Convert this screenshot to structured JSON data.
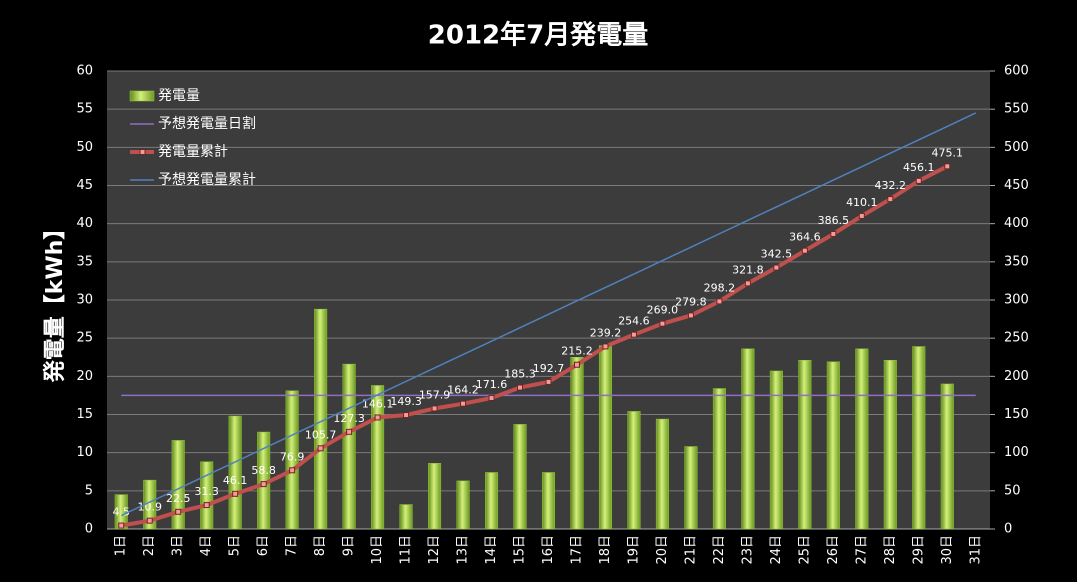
{
  "chart_data": {
    "type": "bar",
    "title": "2012年7月発電量",
    "y_label": "発電量【kWh】",
    "categories": [
      "1日",
      "2日",
      "3日",
      "4日",
      "5日",
      "6日",
      "7日",
      "8日",
      "9日",
      "10日",
      "11日",
      "12日",
      "13日",
      "14日",
      "15日",
      "16日",
      "17日",
      "18日",
      "19日",
      "20日",
      "21日",
      "22日",
      "23日",
      "24日",
      "25日",
      "26日",
      "27日",
      "28日",
      "29日",
      "30日",
      "31日"
    ],
    "ylim": [
      0,
      60
    ],
    "yticks": [
      0,
      5,
      10,
      15,
      20,
      25,
      30,
      35,
      40,
      45,
      50,
      55,
      60
    ],
    "y2lim": [
      0,
      600
    ],
    "y2ticks": [
      0,
      50,
      100,
      150,
      200,
      250,
      300,
      350,
      400,
      450,
      500,
      550,
      600
    ],
    "grid": true,
    "legend": "top-left",
    "series": [
      {
        "name": "発電量",
        "type": "bar",
        "color": "#9acd32",
        "values": [
          4.5,
          6.4,
          11.6,
          8.8,
          14.8,
          12.7,
          18.1,
          28.8,
          21.6,
          18.8,
          3.2,
          8.6,
          6.3,
          7.4,
          13.7,
          7.4,
          22.5,
          24.0,
          15.4,
          14.4,
          10.8,
          18.4,
          23.6,
          20.7,
          22.1,
          21.9,
          23.6,
          22.1,
          23.9,
          19.0,
          null
        ]
      },
      {
        "name": "予想発電量日割",
        "type": "line",
        "color": "#8e6fc4",
        "values": [
          17.5,
          17.5,
          17.5,
          17.5,
          17.5,
          17.5,
          17.5,
          17.5,
          17.5,
          17.5,
          17.5,
          17.5,
          17.5,
          17.5,
          17.5,
          17.5,
          17.5,
          17.5,
          17.5,
          17.5,
          17.5,
          17.5,
          17.5,
          17.5,
          17.5,
          17.5,
          17.5,
          17.5,
          17.5,
          17.5,
          17.5
        ]
      },
      {
        "name": "発電量累計",
        "type": "line",
        "axis": "y2",
        "color": "#c0504d",
        "markers": true,
        "values": [
          4.5,
          10.9,
          22.5,
          31.3,
          46.1,
          58.8,
          76.9,
          105.7,
          127.3,
          146.1,
          149.3,
          157.9,
          164.2,
          171.6,
          185.3,
          192.7,
          215.2,
          239.2,
          254.6,
          269.0,
          279.8,
          298.2,
          321.8,
          342.5,
          364.6,
          386.5,
          410.1,
          432.2,
          456.1,
          475.1,
          null
        ],
        "value_labels": [
          "4.5",
          "10.9",
          "22.5",
          "31.3",
          "46.1",
          "58.8",
          "76.9",
          "105.7",
          "127.3",
          "146.1",
          "149.3",
          "157.9",
          "164.2",
          "171.6",
          "185.3",
          "192.7",
          "215.2",
          "239.2",
          "254.6",
          "269.0",
          "279.8",
          "298.2",
          "321.8",
          "342.5",
          "364.6",
          "386.5",
          "410.1",
          "432.2",
          "456.1",
          "475.1",
          null
        ]
      },
      {
        "name": "予想発電量累計",
        "type": "line",
        "axis": "y2",
        "color": "#4f81bd",
        "values": [
          17.6,
          35.2,
          52.7,
          70.3,
          87.9,
          105.5,
          123.1,
          140.6,
          158.2,
          175.8,
          193.4,
          211.0,
          228.5,
          246.1,
          263.7,
          281.3,
          298.9,
          316.5,
          334.0,
          351.6,
          369.2,
          386.8,
          404.4,
          421.9,
          439.5,
          457.1,
          474.7,
          492.3,
          509.8,
          527.4,
          545.0
        ]
      }
    ]
  }
}
